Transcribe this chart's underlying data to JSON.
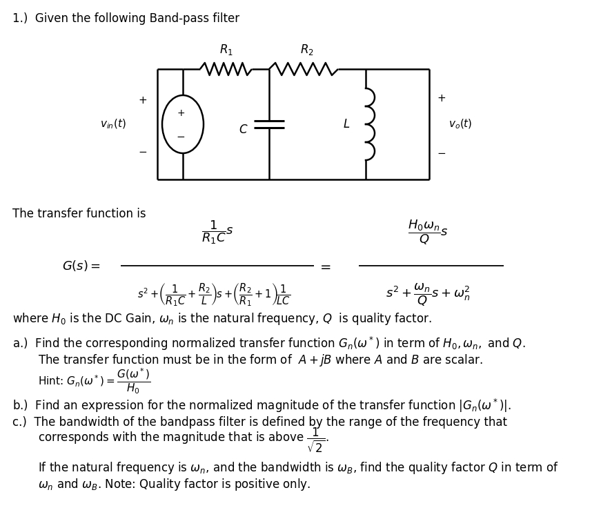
{
  "bg_color": "#ffffff",
  "fig_width": 8.71,
  "fig_height": 7.65,
  "dpi": 100,
  "title_text": "1.)  Given the following Band-pass filter",
  "transfer_fn_label": "The transfer function is",
  "where_text": "where $H_0$ is the DC Gain, $\\omega_n$ is the natural frequency, $Q$  is quality factor.",
  "part_a": "a.)  Find the corresponding normalized transfer function $G_n(\\omega^*)$ in term of $H_0, \\omega_n,$ and $Q$.",
  "part_a2": "The transfer function must be in the form of  $A + jB$ where $A$ and $B$ are scalar.",
  "part_a_hint": "Hint: $G_n(\\omega^*) = \\dfrac{G(\\omega^*)}{H_0}$",
  "part_b": "b.)  Find an expression for the normalized magnitude of the transfer function $|G_n(\\omega^*)|$.",
  "part_c": "c.)  The bandwidth of the bandpass filter is defined by the range of the frequency that",
  "part_c2": "corresponds with the magnitude that is above $\\dfrac{1}{\\sqrt{2}}$.",
  "part_d": "If the natural frequency is $\\omega_n$, and the bandwidth is $\\omega_B$, find the quality factor $Q$ in term of",
  "part_d2": "$\\omega_n$ and $\\omega_B$. Note: Quality factor is positive only."
}
